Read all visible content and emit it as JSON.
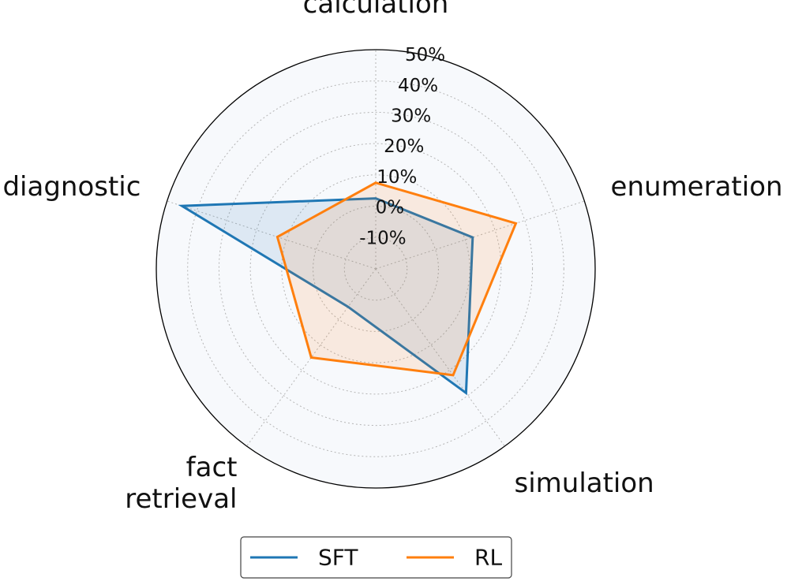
{
  "chart_data": {
    "type": "radar",
    "categories": [
      "calculation",
      "enumeration",
      "simulation",
      "fact retrieval",
      "diagnostic"
    ],
    "category_lines": [
      [
        "calculation"
      ],
      [
        "enumeration"
      ],
      [
        "simulation"
      ],
      [
        "fact",
        "retrieval"
      ],
      [
        "diagnostic"
      ]
    ],
    "series": [
      {
        "name": "SFT",
        "values": [
          2.5,
          12.5,
          29,
          -5,
          45
        ],
        "color": "#1f77b4"
      },
      {
        "name": "RL",
        "values": [
          7.5,
          27,
          22,
          15,
          13
        ],
        "color": "#ff7f0e"
      }
    ],
    "rlim": [
      -20,
      50
    ],
    "r_ticks": [
      -10,
      0,
      10,
      20,
      30,
      40,
      50
    ],
    "r_tick_labels": [
      "-10%",
      "0%",
      "10%",
      "20%",
      "30%",
      "40%",
      "50%"
    ],
    "grid": true,
    "legend_placement": "bottom-center",
    "background_color": "#f7f9fc"
  }
}
